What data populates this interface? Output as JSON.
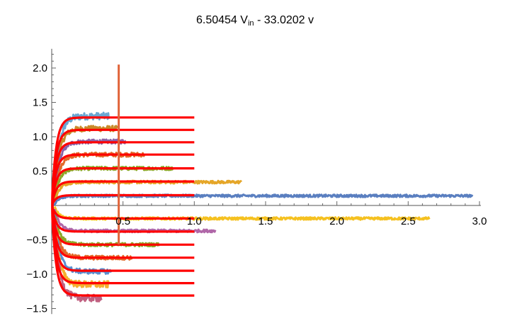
{
  "title": {
    "coef": "6.50454",
    "var_main": "V",
    "var_sub": "in",
    "rest": " - 33.0202 v"
  },
  "chart_data": {
    "type": "line",
    "title": "6.50454 V_in - 33.0202 v",
    "xlim": [
      0,
      3.0
    ],
    "ylim": [
      -1.58,
      2.28
    ],
    "grid": false,
    "x_ticks": [
      "0.5",
      "1.0",
      "1.5",
      "2.0",
      "2.5",
      "3.0"
    ],
    "y_ticks": [
      "2.0",
      "1.5",
      "1.0",
      "0.5",
      "-0.5",
      "-1.0",
      "-1.5"
    ],
    "fit_color": "#ff0000",
    "vertical_marker": {
      "x": 0.47,
      "y_range": [
        -0.57,
        2.05
      ],
      "color": "#e0643a"
    },
    "fit_curves": [
      {
        "steady": 1.28,
        "tau": 0.03,
        "x_end": 1.0
      },
      {
        "steady": 1.1,
        "tau": 0.03,
        "x_end": 1.0
      },
      {
        "steady": 0.92,
        "tau": 0.03,
        "x_end": 1.0
      },
      {
        "steady": 0.74,
        "tau": 0.03,
        "x_end": 1.0
      },
      {
        "steady": 0.54,
        "tau": 0.03,
        "x_end": 1.0
      },
      {
        "steady": 0.35,
        "tau": 0.03,
        "x_end": 1.0
      },
      {
        "steady": 0.15,
        "tau": 0.03,
        "x_end": 1.0
      },
      {
        "steady": -0.19,
        "tau": 0.03,
        "x_end": 1.0
      },
      {
        "steady": -0.38,
        "tau": 0.03,
        "x_end": 1.0
      },
      {
        "steady": -0.57,
        "tau": 0.03,
        "x_end": 1.0
      },
      {
        "steady": -0.76,
        "tau": 0.03,
        "x_end": 1.0
      },
      {
        "steady": -0.95,
        "tau": 0.03,
        "x_end": 1.0
      },
      {
        "steady": -1.13,
        "tau": 0.03,
        "x_end": 1.0
      },
      {
        "steady": -1.31,
        "tau": 0.03,
        "x_end": 1.0
      }
    ],
    "measured_series": [
      {
        "color": "#6aa7d2",
        "steady": 1.3,
        "x_end": 0.4,
        "noise": 0.05
      },
      {
        "color": "#c98a2a",
        "steady": 1.12,
        "x_end": 0.46,
        "noise": 0.04
      },
      {
        "color": "#8b63a8",
        "steady": 0.93,
        "x_end": 0.52,
        "noise": 0.03
      },
      {
        "color": "#e2692a",
        "steady": 0.74,
        "x_end": 0.65,
        "noise": 0.03
      },
      {
        "color": "#8ea828",
        "steady": 0.54,
        "x_end": 0.85,
        "noise": 0.025
      },
      {
        "color": "#e5a628",
        "steady": 0.34,
        "x_end": 1.33,
        "noise": 0.02
      },
      {
        "color": "#5a7fc0",
        "steady": 0.14,
        "x_end": 2.95,
        "noise": 0.018
      },
      {
        "color": "#f5c120",
        "steady": -0.19,
        "x_end": 2.65,
        "noise": 0.018
      },
      {
        "color": "#b067a8",
        "steady": -0.37,
        "x_end": 1.15,
        "noise": 0.02
      },
      {
        "color": "#8ea828",
        "steady": -0.57,
        "x_end": 0.75,
        "noise": 0.025
      },
      {
        "color": "#e2692a",
        "steady": -0.76,
        "x_end": 0.56,
        "noise": 0.03
      },
      {
        "color": "#5a8fd0",
        "steady": -0.96,
        "x_end": 0.42,
        "noise": 0.035
      },
      {
        "color": "#f5b030",
        "steady": -1.15,
        "x_end": 0.4,
        "noise": 0.05
      },
      {
        "color": "#c06080",
        "steady": -1.35,
        "x_end": 0.35,
        "noise": 0.05
      }
    ]
  }
}
